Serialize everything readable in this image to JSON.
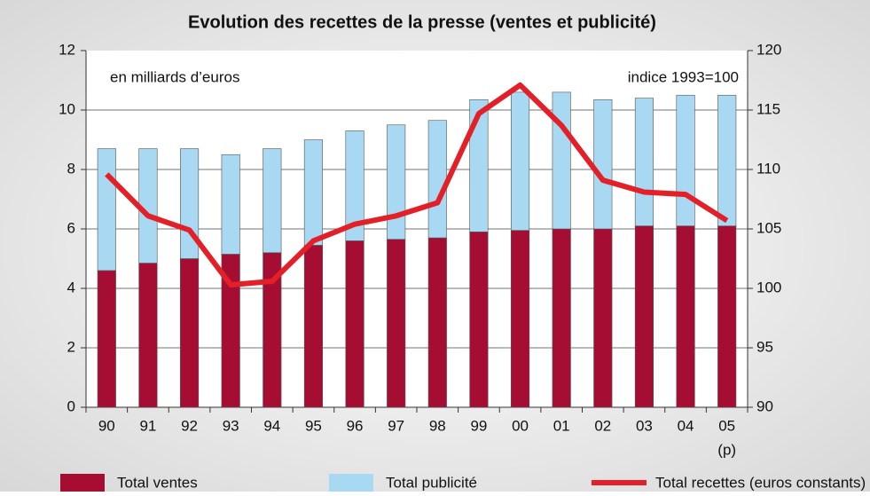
{
  "chart_data": {
    "type": "bar_line",
    "title": "Evolution des recettes de la presse (ventes et publicité)",
    "y_label": "en milliards d’euros",
    "y2_label": "indice 1993=100",
    "last_category_note": "(p)",
    "categories": [
      "90",
      "91",
      "92",
      "93",
      "94",
      "95",
      "96",
      "97",
      "98",
      "99",
      "00",
      "01",
      "02",
      "03",
      "04",
      "05"
    ],
    "series": [
      {
        "name": "Total ventes",
        "color": "#a50d32",
        "kind": "bar",
        "values": [
          4.6,
          4.85,
          5.0,
          5.15,
          5.2,
          5.45,
          5.6,
          5.65,
          5.7,
          5.9,
          5.95,
          6.0,
          6.0,
          6.1,
          6.1,
          6.1
        ]
      },
      {
        "name": "Total publicité",
        "color": "#a9d9f2",
        "kind": "bar",
        "values": [
          4.1,
          3.85,
          3.7,
          3.35,
          3.5,
          3.55,
          3.7,
          3.85,
          3.95,
          4.45,
          4.65,
          4.6,
          4.35,
          4.3,
          4.4,
          4.4
        ]
      },
      {
        "name": "Total recettes (euros constants)",
        "color": "#e32028",
        "kind": "line",
        "axis": "y2",
        "values": [
          109.6,
          106.1,
          104.9,
          100.3,
          100.6,
          104,
          105.4,
          106.1,
          107.2,
          114.7,
          117.1,
          113.7,
          109.1,
          108.1,
          107.9,
          105.7
        ]
      }
    ],
    "stacked": true,
    "ylim": [
      0,
      12
    ],
    "yticks": [
      0,
      2,
      4,
      6,
      8,
      10,
      12
    ],
    "y2lim": [
      90,
      120
    ],
    "y2ticks": [
      90,
      95,
      100,
      105,
      110,
      115,
      120
    ],
    "legend": "bottom"
  }
}
